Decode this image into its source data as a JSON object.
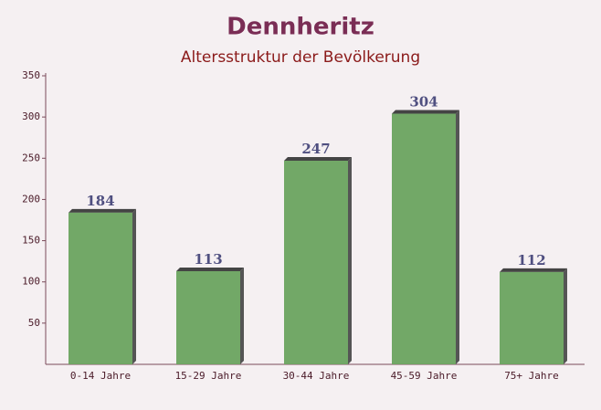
{
  "chart_data": {
    "type": "bar",
    "title": "Dennheritz",
    "subtitle": "Altersstruktur der Bevölkerung",
    "categories": [
      "0-14 Jahre",
      "15-29 Jahre",
      "30-44 Jahre",
      "45-59 Jahre",
      "75+ Jahre"
    ],
    "values": [
      184,
      113,
      247,
      304,
      112
    ],
    "color": "#6aa35f",
    "ylim": [
      0,
      350
    ],
    "yticks": [
      50,
      100,
      150,
      200,
      250,
      300,
      350
    ],
    "grid": false
  }
}
